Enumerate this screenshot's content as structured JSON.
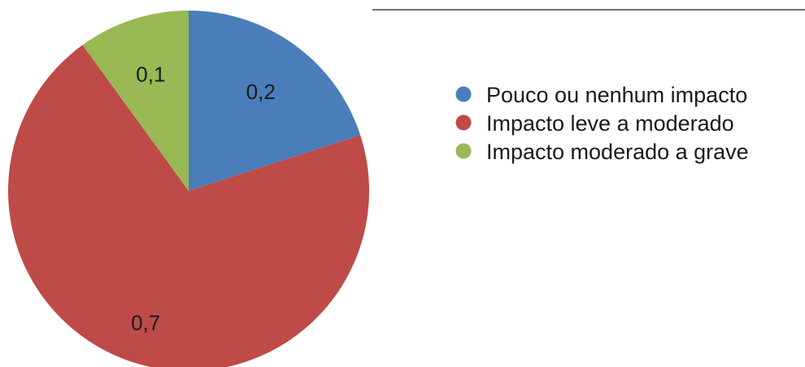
{
  "chart_data": {
    "type": "pie",
    "categories": [
      "Pouco ou nenhum impacto",
      "Impacto leve a moderado",
      "Impacto moderado a grave"
    ],
    "values": [
      0.2,
      0.7,
      0.1
    ],
    "value_labels": [
      "0,2",
      "0,7",
      "0,1"
    ],
    "colors": [
      "#4a7ebb",
      "#be4b48",
      "#98b954"
    ],
    "start_angle_deg": 0,
    "direction": "clockwise",
    "legend_position": "right",
    "title": ""
  }
}
